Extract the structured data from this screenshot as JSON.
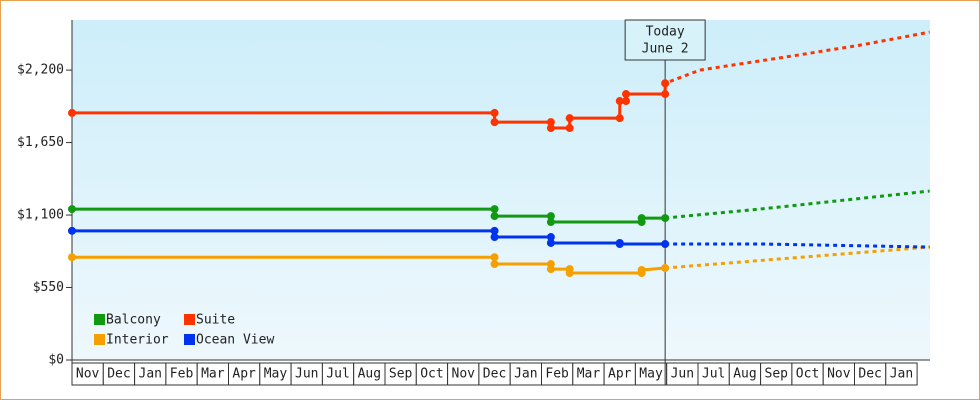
{
  "chart_data": {
    "type": "line",
    "today_label": [
      "Today",
      "June 2"
    ],
    "today_x": 18.95,
    "categories": [
      "Nov",
      "Dec",
      "Jan",
      "Feb",
      "Mar",
      "Apr",
      "May",
      "Jun",
      "Jul",
      "Aug",
      "Sep",
      "Oct",
      "Nov",
      "Dec",
      "Jan",
      "Feb",
      "Mar",
      "Apr",
      "May",
      "Jun",
      "Jul",
      "Aug",
      "Sep",
      "Oct",
      "Nov",
      "Dec",
      "Jan"
    ],
    "xlim": [
      0,
      27.4
    ],
    "ylim": [
      0,
      2580
    ],
    "yticks": [
      {
        "value": 0,
        "label": "$0"
      },
      {
        "value": 550,
        "label": "$550"
      },
      {
        "value": 1100,
        "label": "$1,100"
      },
      {
        "value": 1650,
        "label": "$1,650"
      },
      {
        "value": 2200,
        "label": "$2,200"
      }
    ],
    "series": [
      {
        "name": "Balcony",
        "color": "#119911",
        "x": [
          0,
          13.5,
          13.5,
          15.3,
          15.3,
          18.2,
          18.2,
          18.95,
          22.3,
          27.4
        ],
        "values": [
          1145,
          1145,
          1092,
          1092,
          1047,
          1047,
          1077,
          1077,
          1153,
          1282
        ]
      },
      {
        "name": "Suite",
        "color": "#ff3300",
        "x": [
          0,
          13.5,
          13.5,
          15.3,
          15.3,
          15.9,
          15.9,
          17.5,
          17.5,
          17.7,
          17.7,
          18.95,
          18.95,
          20.06,
          23.2,
          25.2,
          27.4
        ],
        "values": [
          1875,
          1875,
          1805,
          1805,
          1760,
          1760,
          1835,
          1835,
          1965,
          1965,
          2018,
          2018,
          2100,
          2200,
          2314,
          2390,
          2488
        ]
      },
      {
        "name": "Interior",
        "color": "#f5a000",
        "x": [
          0,
          13.5,
          13.5,
          15.3,
          15.3,
          15.9,
          15.9,
          18.2,
          18.2,
          18.95,
          27.4
        ],
        "values": [
          780,
          780,
          728,
          728,
          690,
          690,
          660,
          660,
          683,
          698,
          857
        ]
      },
      {
        "name": "Ocean View",
        "color": "#0033ee",
        "x": [
          0,
          13.5,
          13.5,
          15.3,
          15.3,
          17.5,
          17.5,
          18.95,
          22.1,
          27.4
        ],
        "values": [
          980,
          980,
          933,
          933,
          888,
          888,
          880,
          880,
          880,
          857
        ]
      }
    ]
  }
}
